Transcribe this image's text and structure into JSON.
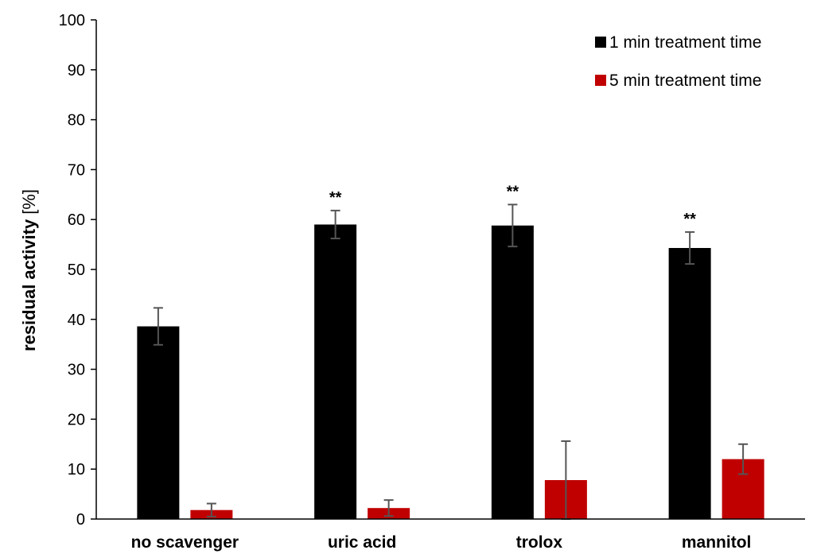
{
  "chart_data": {
    "type": "bar",
    "categories": [
      "no scavenger",
      "uric acid",
      "trolox",
      "mannitol"
    ],
    "series": [
      {
        "name": "1 min treatment time",
        "color": "#000000",
        "values": [
          38.6,
          59.0,
          58.8,
          54.3
        ],
        "errors": [
          3.7,
          2.8,
          4.2,
          3.2
        ],
        "annotations": [
          "",
          "**",
          "**",
          "**"
        ]
      },
      {
        "name": "5 min treatment time",
        "color": "#c00000",
        "values": [
          1.8,
          2.2,
          7.8,
          12.0
        ],
        "errors": [
          1.3,
          1.6,
          7.8,
          3.0
        ],
        "annotations": [
          "",
          "",
          "",
          ""
        ]
      }
    ],
    "ylabel": "residual activity [%]",
    "ylabel_bold": "residual activity",
    "ylabel_unit": "[%]",
    "ylim": [
      0,
      100
    ],
    "yticks": [
      0,
      10,
      20,
      30,
      40,
      50,
      60,
      70,
      80,
      90,
      100
    ],
    "grid": false,
    "legend_position": "top-right",
    "error_bar_color": "#555555"
  }
}
